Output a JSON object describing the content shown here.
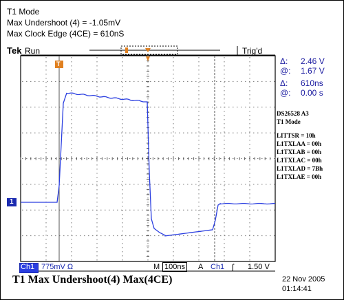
{
  "header": {
    "line1": "T1 Mode",
    "line2": "Max Undershoot (4) = -1.05mV",
    "line3": "Max Clock Edge (4CE) = 610nS"
  },
  "topbar": {
    "brand": "Tek",
    "run_state": "Run",
    "trig_state": "Trig'd"
  },
  "readouts": {
    "delta_symbol": "Δ:",
    "at_symbol": "@:",
    "volt_delta": "2.46 V",
    "volt_at": "1.67 V",
    "time_delta": "610ns",
    "time_at": "0.00 s"
  },
  "notes": {
    "title": "DS26528  A3",
    "mode": "T1 Mode",
    "registers": [
      "LITTSR = 10h",
      "L1TXLAA = 00h",
      "L1TXLAB = 00h",
      "L1TXLAC = 00h",
      "L1TXLAD = 7Bh",
      "L1TXLAE = 00h"
    ]
  },
  "bottombar": {
    "ch_label": "Ch1",
    "ch_scale": "775mV Ω",
    "m_label": "M",
    "timebase": "100ns",
    "a_label": "A",
    "trig_ch": "Ch1",
    "trig_slope": "ʃ",
    "trig_level": "1.50 V"
  },
  "caption": {
    "text": "T1 Max Undershoot(4)  Max(4CE)",
    "date": "22 Nov 2005",
    "time": "01:14:41"
  },
  "markers": {
    "ch1_ground": "1",
    "trigger_pos": "T"
  },
  "colors": {
    "trace": "#2a3ee0",
    "marker_orange": "#e08020",
    "grid": "#555555",
    "ground_marker": "#1a2ab0"
  }
}
